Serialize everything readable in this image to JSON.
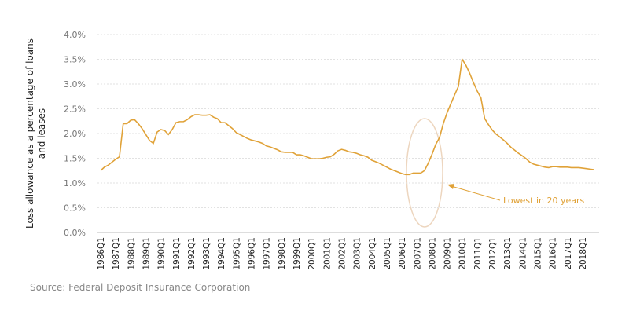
{
  "chart_data": {
    "type": "line",
    "y_label": [
      "Loss allowance as a percentage of loans",
      "and leases"
    ],
    "annotation": "Lowest in 20 years",
    "source": "Source: Federal Deposit Insurance Corporation",
    "color": "#e0a238",
    "grid": true,
    "ylim": [
      0,
      4
    ],
    "yticks": [
      {
        "value": 0,
        "label": "0.0%"
      },
      {
        "value": 0.5,
        "label": "0.5%"
      },
      {
        "value": 1,
        "label": "1.0%"
      },
      {
        "value": 1.5,
        "label": "1.5%"
      },
      {
        "value": 2,
        "label": "2.0%"
      },
      {
        "value": 2.5,
        "label": "2.5%"
      },
      {
        "value": 3,
        "label": "3.0%"
      },
      {
        "value": 3.5,
        "label": "3.5%"
      },
      {
        "value": 4,
        "label": "4.0%"
      }
    ],
    "categories": [
      "1986Q1",
      null,
      null,
      null,
      "1987Q1",
      null,
      null,
      null,
      "1988Q1",
      null,
      null,
      null,
      "1989Q1",
      null,
      null,
      null,
      "1990Q1",
      null,
      null,
      null,
      "1991Q1",
      null,
      null,
      null,
      "1992Q1",
      null,
      null,
      null,
      "1993Q1",
      null,
      null,
      null,
      "1994Q1",
      null,
      null,
      null,
      "1995Q1",
      null,
      null,
      null,
      "1996Q1",
      null,
      null,
      null,
      "1997Q1",
      null,
      null,
      null,
      "1998Q1",
      null,
      null,
      null,
      "1999Q1",
      null,
      null,
      null,
      "2000Q1",
      null,
      null,
      null,
      "2001Q1",
      null,
      null,
      null,
      "2002Q1",
      null,
      null,
      null,
      "2003Q1",
      null,
      null,
      null,
      "2004Q1",
      null,
      null,
      null,
      "2005Q1",
      null,
      null,
      null,
      "2006Q1",
      null,
      null,
      null,
      "2007Q1",
      null,
      null,
      null,
      "2008Q1",
      null,
      null,
      null,
      "2009Q1",
      null,
      null,
      null,
      "2010Q1",
      null,
      null,
      null,
      "2011Q1",
      null,
      null,
      null,
      "2012Q1",
      null,
      null,
      null,
      "2013Q1",
      null,
      null,
      null,
      "2014Q1",
      null,
      null,
      null,
      "2015Q1",
      null,
      null,
      null,
      "2016Q1",
      null,
      null,
      null,
      "2017Q1",
      null,
      null,
      null,
      "2018Q1",
      null,
      null,
      null
    ],
    "values": [
      1.25,
      1.32,
      1.36,
      1.42,
      1.48,
      1.53,
      2.2,
      2.2,
      2.27,
      2.28,
      2.2,
      2.1,
      1.98,
      1.86,
      1.8,
      2.03,
      2.08,
      2.06,
      1.98,
      2.08,
      2.22,
      2.24,
      2.24,
      2.28,
      2.34,
      2.38,
      2.38,
      2.37,
      2.37,
      2.38,
      2.33,
      2.3,
      2.22,
      2.22,
      2.16,
      2.1,
      2.02,
      1.98,
      1.94,
      1.9,
      1.87,
      1.85,
      1.83,
      1.8,
      1.75,
      1.73,
      1.7,
      1.67,
      1.63,
      1.62,
      1.62,
      1.62,
      1.57,
      1.57,
      1.55,
      1.52,
      1.49,
      1.49,
      1.49,
      1.5,
      1.52,
      1.53,
      1.58,
      1.65,
      1.68,
      1.66,
      1.63,
      1.62,
      1.6,
      1.57,
      1.55,
      1.52,
      1.46,
      1.43,
      1.4,
      1.36,
      1.32,
      1.28,
      1.25,
      1.22,
      1.19,
      1.17,
      1.17,
      1.2,
      1.2,
      1.2,
      1.25,
      1.4,
      1.58,
      1.78,
      1.92,
      2.2,
      2.42,
      2.6,
      2.78,
      2.95,
      3.5,
      3.38,
      3.22,
      3.03,
      2.86,
      2.72,
      2.3,
      2.18,
      2.07,
      1.99,
      1.93,
      1.87,
      1.8,
      1.72,
      1.66,
      1.6,
      1.55,
      1.49,
      1.42,
      1.38,
      1.36,
      1.34,
      1.32,
      1.31,
      1.33,
      1.33,
      1.32,
      1.32,
      1.32,
      1.31,
      1.31,
      1.31,
      1.3,
      1.29,
      1.28,
      1.27
    ]
  }
}
